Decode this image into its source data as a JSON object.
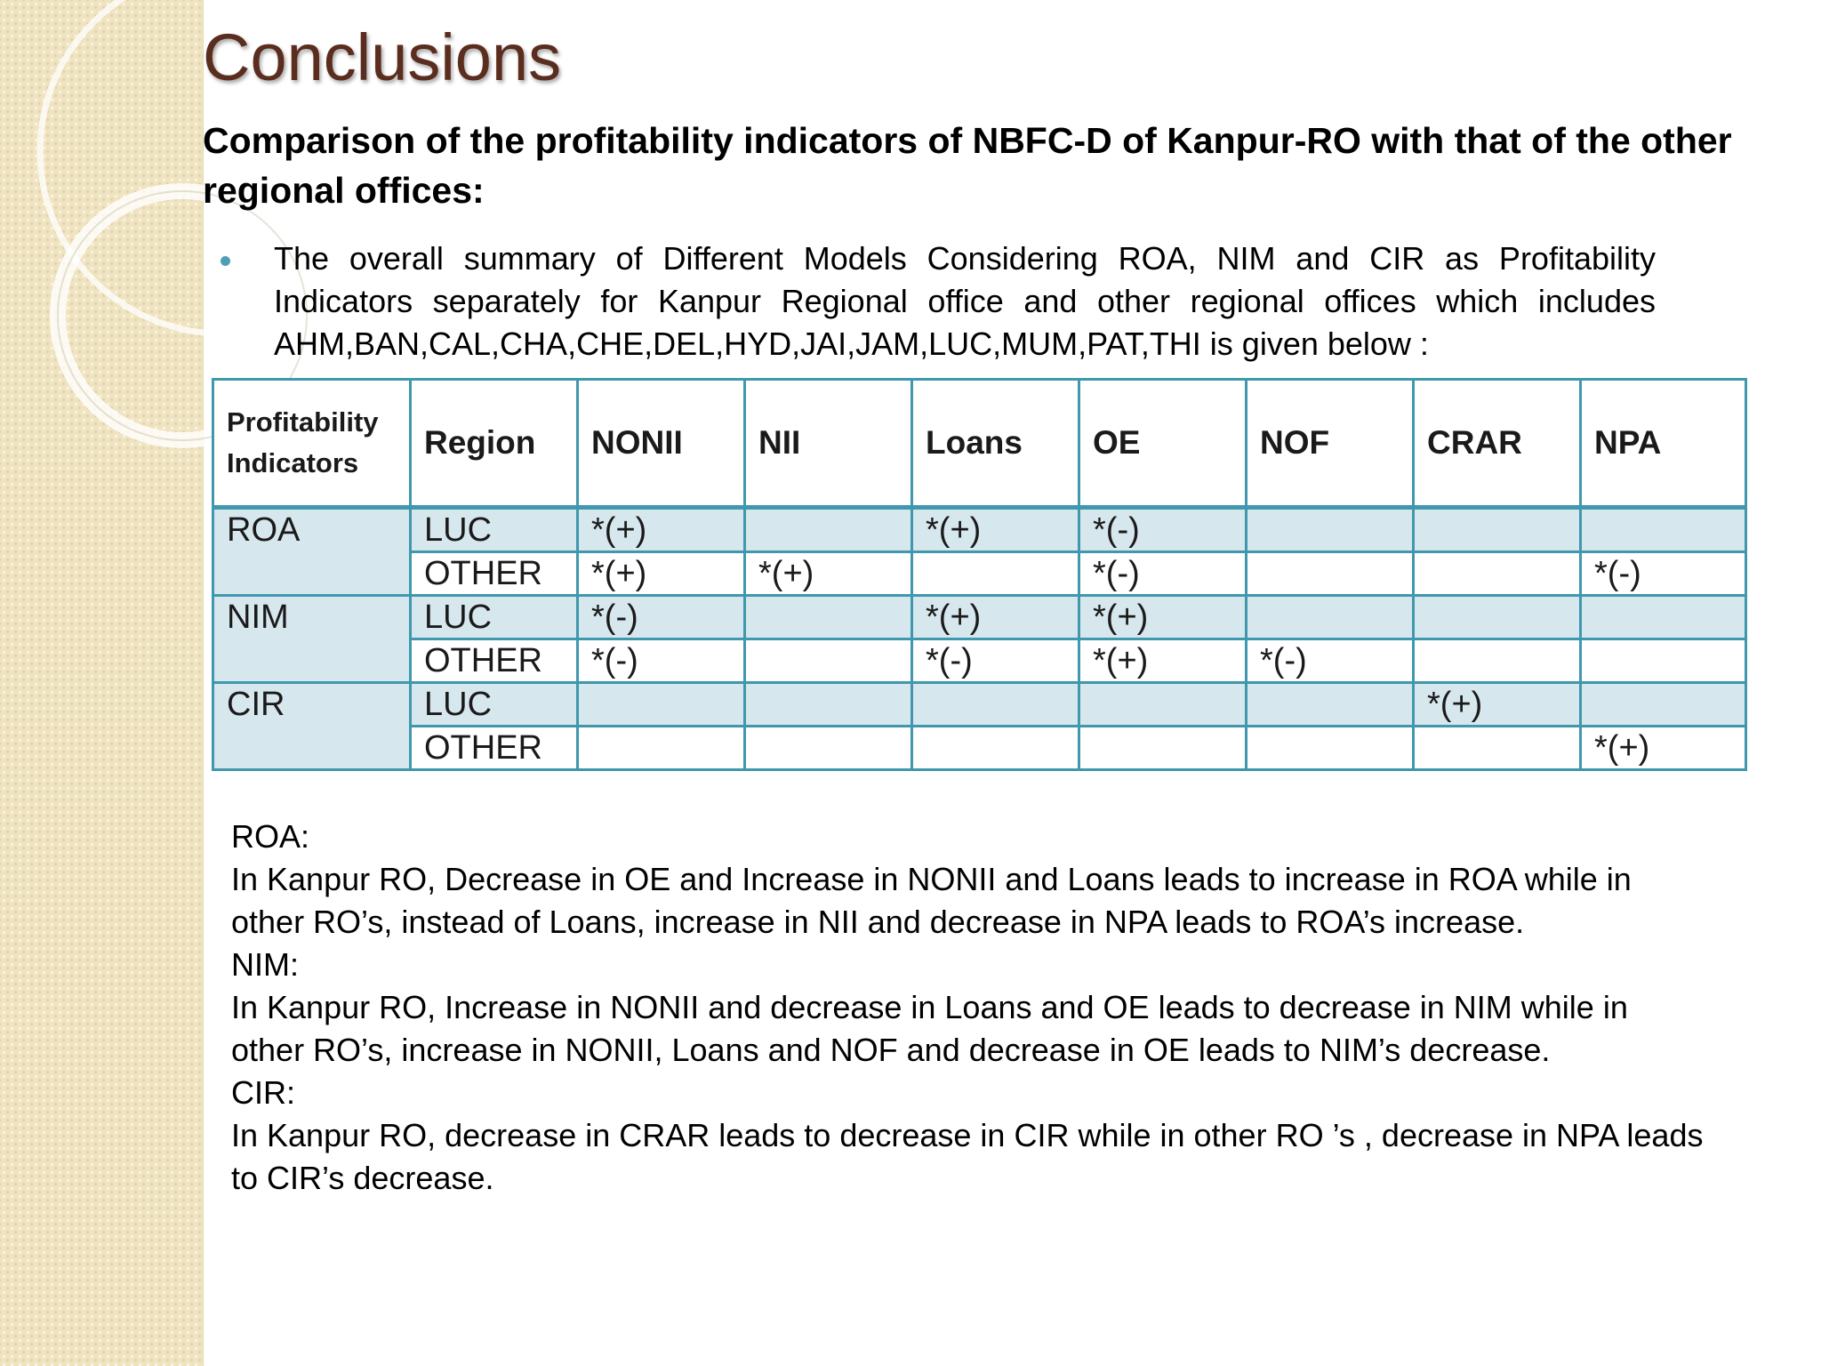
{
  "slide": {
    "title": "Conclusions",
    "subtitle": "Comparison of the profitability indicators of NBFC-D of Kanpur-RO with that of the other regional offices:",
    "bullet": "The overall summary of Different Models Considering ROA, NIM and CIR as Profitability Indicators separately for Kanpur Regional office and other regional offices which includes AHM,BAN,CAL,CHA,CHE,DEL,HYD,JAI,JAM,LUC,MUM,PAT,THI is given below :"
  },
  "table": {
    "headers": [
      "Profitability Indicators",
      "Region",
      "NONII",
      "NII",
      "Loans",
      "OE",
      "NOF",
      "CRAR",
      "NPA"
    ],
    "groups": [
      {
        "indicator": "ROA",
        "rows": [
          {
            "region": "LUC",
            "cells": [
              "*(+)",
              "",
              "*(+)",
              "*(-)",
              "",
              "",
              ""
            ]
          },
          {
            "region": "OTHER",
            "cells": [
              "*(+)",
              "*(+)",
              "",
              "*(-)",
              "",
              "",
              "*(-)"
            ]
          }
        ]
      },
      {
        "indicator": "NIM",
        "rows": [
          {
            "region": "LUC",
            "cells": [
              "*(-)",
              "",
              "*(+)",
              "*(+)",
              "",
              "",
              ""
            ]
          },
          {
            "region": "OTHER",
            "cells": [
              "*(-)",
              "",
              "*(-)",
              "*(+)",
              "*(-)",
              "",
              ""
            ]
          }
        ]
      },
      {
        "indicator": "CIR",
        "rows": [
          {
            "region": "LUC",
            "cells": [
              "",
              "",
              "",
              "",
              "",
              "*(+)",
              ""
            ]
          },
          {
            "region": "OTHER",
            "cells": [
              "",
              "",
              "",
              "",
              "",
              "",
              "*(+)"
            ]
          }
        ]
      }
    ]
  },
  "notes": [
    "ROA:",
    "In Kanpur RO, Decrease in OE and Increase in NONII and Loans leads to increase in ROA while in other RO’s, instead of Loans, increase in NII and decrease in NPA leads to ROA’s increase.",
    "NIM:",
    "In Kanpur RO, Increase in NONII and decrease in Loans and OE leads to decrease in NIM while in other RO’s, increase in NONII, Loans and NOF and decrease in OE  leads to NIM’s decrease.",
    "CIR:",
    "In Kanpur RO, decrease in CRAR leads to decrease in CIR while in other RO ’s , decrease in NPA  leads to CIR’s decrease."
  ]
}
